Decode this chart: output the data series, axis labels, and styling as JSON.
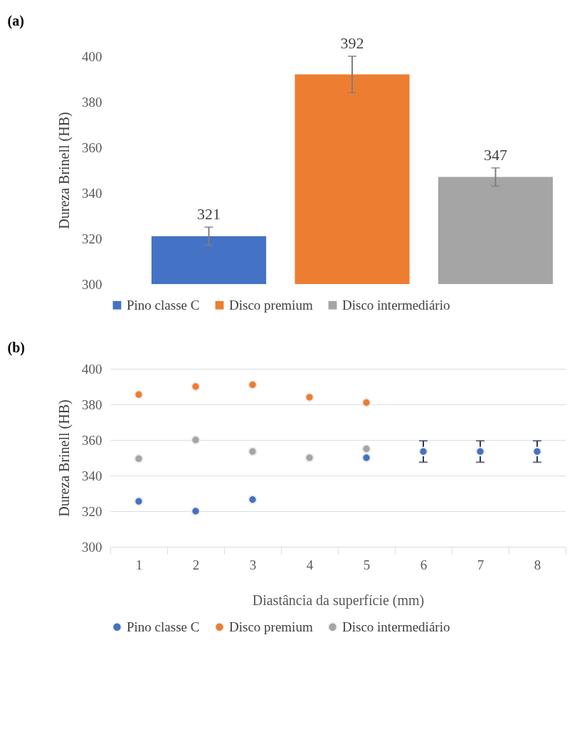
{
  "chart_data": [
    {
      "type": "bar",
      "title": "(a)",
      "ylabel": "Dureza Brinell (HB)",
      "categories": [
        null
      ],
      "series": [
        {
          "name": "Pino classe C",
          "color": "#4472c4",
          "values": [
            321
          ],
          "errors": [
            4
          ]
        },
        {
          "name": "Disco premium",
          "color": "#ed7d31",
          "values": [
            392
          ],
          "errors": [
            8
          ]
        },
        {
          "name": "Disco intermediário",
          "color": "#a5a5a5",
          "values": [
            347
          ],
          "errors": [
            4
          ]
        }
      ],
      "ylim": [
        300,
        400
      ],
      "yticks": [
        300,
        320,
        340,
        360,
        380,
        400
      ],
      "data_labels": true,
      "legend": "bottom",
      "grid": false
    },
    {
      "type": "scatter",
      "title": "(b)",
      "xlabel": "Diastância da superfície (mm)",
      "ylabel": "Dureza Brinell (HB)",
      "categories": [
        "1",
        "2",
        "3",
        "4",
        "5",
        "6",
        "7",
        "8"
      ],
      "series": [
        {
          "name": "Pino classe C",
          "color": "#4472c4",
          "values": [
            325.5,
            320,
            326.5,
            null,
            350,
            353.5,
            353.5,
            353.5
          ],
          "errors": [
            null,
            null,
            null,
            null,
            null,
            6,
            6,
            6
          ]
        },
        {
          "name": "Disco premium",
          "color": "#ed7d31",
          "values": [
            385.5,
            390,
            391,
            384,
            381,
            null,
            null,
            null
          ]
        },
        {
          "name": "Disco intermediário",
          "color": "#a5a5a5",
          "values": [
            349.5,
            360,
            353.5,
            350,
            355,
            null,
            null,
            null
          ]
        }
      ],
      "ylim": [
        300,
        400
      ],
      "yticks": [
        300,
        320,
        340,
        360,
        380,
        400
      ],
      "grid": "y",
      "legend": "bottom",
      "marker": "circle"
    }
  ]
}
